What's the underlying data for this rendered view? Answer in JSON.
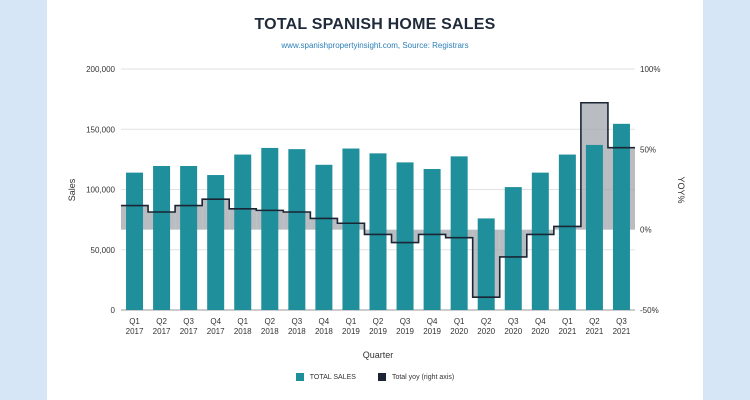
{
  "title": "TOTAL SPANISH HOME SALES",
  "subtitle": "www.spanishpropertyinsight.com, Source: Registrars",
  "colors": {
    "bars": "#1f8f9c",
    "yoy_line": "#1b2533",
    "yoy_fill": "#9ea3aa",
    "background": "#d6e6f7",
    "card": "#ffffff"
  },
  "legend": {
    "sales_label": "TOTAL SALES",
    "yoy_label": "Total yoy (right axis)"
  },
  "chart_data": {
    "type": "bar",
    "title": "TOTAL SPANISH HOME SALES",
    "subtitle": "www.spanishpropertyinsight.com, Source: Registrars",
    "xlabel": "Quarter",
    "ylabel": "Sales",
    "y2label": "YOY%",
    "ylim": [
      0,
      200000
    ],
    "y2lim": [
      -50,
      100
    ],
    "yticks": [
      "0",
      "50,000",
      "100,000",
      "150,000",
      "200,000"
    ],
    "y2ticks": [
      "-50%",
      "0%",
      "50%",
      "100%"
    ],
    "categories": [
      [
        "Q1",
        "2017"
      ],
      [
        "Q2",
        "2017"
      ],
      [
        "Q3",
        "2017"
      ],
      [
        "Q4",
        "2017"
      ],
      [
        "Q1",
        "2018"
      ],
      [
        "Q2",
        "2018"
      ],
      [
        "Q3",
        "2018"
      ],
      [
        "Q4",
        "2018"
      ],
      [
        "Q1",
        "2019"
      ],
      [
        "Q2",
        "2019"
      ],
      [
        "Q3",
        "2019"
      ],
      [
        "Q4",
        "2019"
      ],
      [
        "Q1",
        "2020"
      ],
      [
        "Q2",
        "2020"
      ],
      [
        "Q3",
        "2020"
      ],
      [
        "Q4",
        "2020"
      ],
      [
        "Q1",
        "2021"
      ],
      [
        "Q2",
        "2021"
      ],
      [
        "Q3",
        "2021"
      ]
    ],
    "series": [
      {
        "name": "TOTAL SALES",
        "type": "bar",
        "axis": "left",
        "values": [
          114000,
          119500,
          119500,
          112000,
          129000,
          134500,
          133500,
          120500,
          134000,
          130000,
          122500,
          117000,
          127500,
          76000,
          102000,
          114000,
          129000,
          137000,
          154500
        ]
      },
      {
        "name": "Total yoy (right axis)",
        "type": "step-area",
        "axis": "right",
        "values": [
          15,
          11,
          15,
          19,
          13,
          12,
          11,
          7,
          4,
          -3,
          -8,
          -3,
          -5,
          -42,
          -17,
          -3,
          2,
          79,
          51
        ]
      }
    ],
    "legend_position": "bottom",
    "grid": true
  }
}
